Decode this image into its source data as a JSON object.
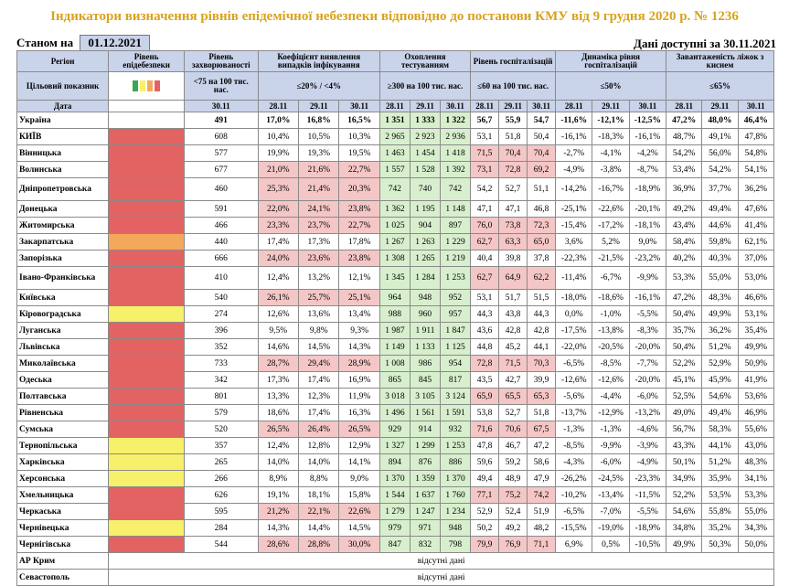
{
  "title": "Індикатори визначення рівнів епідемічної небезпеки відповідно до постанови КМУ від 9 грудня 2020 р. № 1236",
  "as_of_label": "Станом на",
  "as_of_date": "01.12.2021",
  "available_label": "Дані доступні за 30.11.2021",
  "headers": {
    "region": "Регіон",
    "target": "Цільовий показник",
    "date": "Дата",
    "level": "Рівень епідебезпеки",
    "morbidity": "Рівень захворюваності",
    "morbidity_target": "<75 на 100 тис. нас.",
    "detection": "Коефіцієнт виявлення випадків інфікування",
    "detection_target": "≤20% / <4%",
    "testing": "Охоплення тестуванням",
    "testing_target": "≥300 на 100 тис. нас.",
    "hosp": "Рівень госпіталізацій",
    "hosp_target": "≤60 на 100 тис. нас.",
    "dyn": "Динаміка рівня госпіталізацій",
    "dyn_target": "≤50%",
    "beds": "Завантаженість ліжок з киснем",
    "beds_target": "≤65%",
    "d1": "28.11",
    "d2": "29.11",
    "d3": "30.11",
    "legend_colors": [
      "#3aa655",
      "#f7f06a",
      "#f3a85b",
      "#e36363"
    ]
  },
  "rows": [
    {
      "name": "Україна",
      "level": "",
      "m": "491",
      "det": [
        "17,0%",
        "16,8%",
        "16,5%"
      ],
      "test": [
        "1 351",
        "1 333",
        "1 322"
      ],
      "hosp": [
        "56,7",
        "55,9",
        "54,7"
      ],
      "dyn": [
        "-11,6%",
        "-12,1%",
        "-12,5%"
      ],
      "beds": [
        "47,2%",
        "48,0%",
        "46,4%"
      ]
    },
    {
      "name": "КИЇВ",
      "level": "r",
      "m": "608",
      "det": [
        "10,4%",
        "10,5%",
        "10,3%"
      ],
      "test": [
        "2 965",
        "2 923",
        "2 936"
      ],
      "hosp": [
        "53,1",
        "51,8",
        "50,4"
      ],
      "dyn": [
        "-16,1%",
        "-18,3%",
        "-16,1%"
      ],
      "beds": [
        "48,7%",
        "49,1%",
        "47,8%"
      ]
    },
    {
      "name": "Вінницька",
      "level": "r",
      "m": "577",
      "det": [
        "19,9%",
        "19,3%",
        "19,5%"
      ],
      "test": [
        "1 463",
        "1 454",
        "1 418"
      ],
      "hosp": [
        "71,5",
        "70,4",
        "70,4"
      ],
      "dyn": [
        "-2,7%",
        "-4,1%",
        "-4,2%"
      ],
      "beds": [
        "54,2%",
        "56,0%",
        "54,8%"
      ]
    },
    {
      "name": "Волинська",
      "level": "r",
      "m": "677",
      "det": [
        "21,0%",
        "21,6%",
        "22,7%"
      ],
      "test": [
        "1 557",
        "1 528",
        "1 392"
      ],
      "hosp": [
        "73,1",
        "72,8",
        "69,2"
      ],
      "dyn": [
        "-4,9%",
        "-3,8%",
        "-8,7%"
      ],
      "beds": [
        "53,4%",
        "54,2%",
        "54,1%"
      ]
    },
    {
      "name": "Дніпропетровська",
      "level": "r",
      "m": "460",
      "det": [
        "25,3%",
        "21,4%",
        "20,3%"
      ],
      "test": [
        "742",
        "740",
        "742"
      ],
      "hosp": [
        "54,2",
        "52,7",
        "51,1"
      ],
      "dyn": [
        "-14,2%",
        "-16,7%",
        "-18,9%"
      ],
      "beds": [
        "36,9%",
        "37,7%",
        "36,2%"
      ]
    },
    {
      "name": "Донецька",
      "level": "r",
      "m": "591",
      "det": [
        "22,0%",
        "24,1%",
        "23,8%"
      ],
      "test": [
        "1 362",
        "1 195",
        "1 148"
      ],
      "hosp": [
        "47,1",
        "47,1",
        "46,8"
      ],
      "dyn": [
        "-25,1%",
        "-22,6%",
        "-20,1%"
      ],
      "beds": [
        "49,2%",
        "49,4%",
        "47,6%"
      ]
    },
    {
      "name": "Житомирська",
      "level": "r",
      "m": "466",
      "det": [
        "23,3%",
        "23,7%",
        "22,7%"
      ],
      "test": [
        "1 025",
        "904",
        "897"
      ],
      "hosp": [
        "76,0",
        "73,8",
        "72,3"
      ],
      "dyn": [
        "-15,4%",
        "-17,2%",
        "-18,1%"
      ],
      "beds": [
        "43,4%",
        "44,6%",
        "41,4%"
      ]
    },
    {
      "name": "Закарпатська",
      "level": "o",
      "m": "440",
      "det": [
        "17,4%",
        "17,3%",
        "17,8%"
      ],
      "test": [
        "1 267",
        "1 263",
        "1 229"
      ],
      "hosp": [
        "62,7",
        "63,3",
        "65,0"
      ],
      "dyn": [
        "3,6%",
        "5,2%",
        "9,0%"
      ],
      "beds": [
        "58,4%",
        "59,8%",
        "62,1%"
      ]
    },
    {
      "name": "Запорізька",
      "level": "r",
      "m": "666",
      "det": [
        "24,0%",
        "23,6%",
        "23,8%"
      ],
      "test": [
        "1 308",
        "1 265",
        "1 219"
      ],
      "hosp": [
        "40,4",
        "39,8",
        "37,8"
      ],
      "dyn": [
        "-22,3%",
        "-21,5%",
        "-23,2%"
      ],
      "beds": [
        "40,2%",
        "40,3%",
        "37,0%"
      ]
    },
    {
      "name": "Івано-Франківська",
      "level": "r",
      "m": "410",
      "det": [
        "12,4%",
        "13,2%",
        "12,1%"
      ],
      "test": [
        "1 345",
        "1 284",
        "1 253"
      ],
      "hosp": [
        "62,7",
        "64,9",
        "62,2"
      ],
      "dyn": [
        "-11,4%",
        "-6,7%",
        "-9,9%"
      ],
      "beds": [
        "53,3%",
        "55,0%",
        "53,0%"
      ]
    },
    {
      "name": "Київська",
      "level": "r",
      "m": "540",
      "det": [
        "26,1%",
        "25,7%",
        "25,1%"
      ],
      "test": [
        "964",
        "948",
        "952"
      ],
      "hosp": [
        "53,1",
        "51,7",
        "51,5"
      ],
      "dyn": [
        "-18,0%",
        "-18,6%",
        "-16,1%"
      ],
      "beds": [
        "47,2%",
        "48,3%",
        "46,6%"
      ]
    },
    {
      "name": "Кіровоградська",
      "level": "y",
      "m": "274",
      "det": [
        "12,6%",
        "13,6%",
        "13,4%"
      ],
      "test": [
        "988",
        "960",
        "957"
      ],
      "hosp": [
        "44,3",
        "43,8",
        "44,3"
      ],
      "dyn": [
        "0,0%",
        "-1,0%",
        "-5,5%"
      ],
      "beds": [
        "50,4%",
        "49,9%",
        "53,1%"
      ]
    },
    {
      "name": "Луганська",
      "level": "r",
      "m": "396",
      "det": [
        "9,5%",
        "9,8%",
        "9,3%"
      ],
      "test": [
        "1 987",
        "1 911",
        "1 847"
      ],
      "hosp": [
        "43,6",
        "42,8",
        "42,8"
      ],
      "dyn": [
        "-17,5%",
        "-13,8%",
        "-8,3%"
      ],
      "beds": [
        "35,7%",
        "36,2%",
        "35,4%"
      ]
    },
    {
      "name": "Львівська",
      "level": "r",
      "m": "352",
      "det": [
        "14,6%",
        "14,5%",
        "14,3%"
      ],
      "test": [
        "1 149",
        "1 133",
        "1 125"
      ],
      "hosp": [
        "44,8",
        "45,2",
        "44,1"
      ],
      "dyn": [
        "-22,0%",
        "-20,5%",
        "-20,0%"
      ],
      "beds": [
        "50,4%",
        "51,2%",
        "49,9%"
      ]
    },
    {
      "name": "Миколаївська",
      "level": "r",
      "m": "733",
      "det": [
        "28,7%",
        "29,4%",
        "28,9%"
      ],
      "test": [
        "1 008",
        "986",
        "954"
      ],
      "hosp": [
        "72,8",
        "71,5",
        "70,3"
      ],
      "dyn": [
        "-6,5%",
        "-8,5%",
        "-7,7%"
      ],
      "beds": [
        "52,2%",
        "52,9%",
        "50,9%"
      ]
    },
    {
      "name": "Одеська",
      "level": "r",
      "m": "342",
      "det": [
        "17,3%",
        "17,4%",
        "16,9%"
      ],
      "test": [
        "865",
        "845",
        "817"
      ],
      "hosp": [
        "43,5",
        "42,7",
        "39,9"
      ],
      "dyn": [
        "-12,6%",
        "-12,6%",
        "-20,0%"
      ],
      "beds": [
        "45,1%",
        "45,9%",
        "41,9%"
      ]
    },
    {
      "name": "Полтавська",
      "level": "r",
      "m": "801",
      "det": [
        "13,3%",
        "12,3%",
        "11,9%"
      ],
      "test": [
        "3 018",
        "3 105",
        "3 124"
      ],
      "hosp": [
        "65,9",
        "65,5",
        "65,3"
      ],
      "dyn": [
        "-5,6%",
        "-4,4%",
        "-6,0%"
      ],
      "beds": [
        "52,5%",
        "54,6%",
        "53,6%"
      ]
    },
    {
      "name": "Рівненська",
      "level": "r",
      "m": "579",
      "det": [
        "18,6%",
        "17,4%",
        "16,3%"
      ],
      "test": [
        "1 496",
        "1 561",
        "1 591"
      ],
      "hosp": [
        "53,8",
        "52,7",
        "51,8"
      ],
      "dyn": [
        "-13,7%",
        "-12,9%",
        "-13,2%"
      ],
      "beds": [
        "49,0%",
        "49,4%",
        "46,9%"
      ]
    },
    {
      "name": "Сумська",
      "level": "r",
      "m": "520",
      "det": [
        "26,5%",
        "26,4%",
        "26,5%"
      ],
      "test": [
        "929",
        "914",
        "932"
      ],
      "hosp": [
        "71,6",
        "70,6",
        "67,5"
      ],
      "dyn": [
        "-1,3%",
        "-1,3%",
        "-4,6%"
      ],
      "beds": [
        "56,7%",
        "58,3%",
        "55,6%"
      ]
    },
    {
      "name": "Тернопільська",
      "level": "y",
      "m": "357",
      "det": [
        "12,4%",
        "12,8%",
        "12,9%"
      ],
      "test": [
        "1 327",
        "1 299",
        "1 253"
      ],
      "hosp": [
        "47,8",
        "46,7",
        "47,2"
      ],
      "dyn": [
        "-8,5%",
        "-9,9%",
        "-3,9%"
      ],
      "beds": [
        "43,3%",
        "44,1%",
        "43,0%"
      ]
    },
    {
      "name": "Харківська",
      "level": "y",
      "m": "265",
      "det": [
        "14,0%",
        "14,0%",
        "14,1%"
      ],
      "test": [
        "894",
        "876",
        "886"
      ],
      "hosp": [
        "59,6",
        "59,2",
        "58,6"
      ],
      "dyn": [
        "-4,3%",
        "-6,0%",
        "-4,9%"
      ],
      "beds": [
        "50,1%",
        "51,2%",
        "48,3%"
      ]
    },
    {
      "name": "Херсонська",
      "level": "y",
      "m": "266",
      "det": [
        "8,9%",
        "8,8%",
        "9,0%"
      ],
      "test": [
        "1 370",
        "1 359",
        "1 370"
      ],
      "hosp": [
        "49,4",
        "48,9",
        "47,9"
      ],
      "dyn": [
        "-26,2%",
        "-24,5%",
        "-23,3%"
      ],
      "beds": [
        "34,9%",
        "35,9%",
        "34,1%"
      ]
    },
    {
      "name": "Хмельницька",
      "level": "r",
      "m": "626",
      "det": [
        "19,1%",
        "18,1%",
        "15,8%"
      ],
      "test": [
        "1 544",
        "1 637",
        "1 760"
      ],
      "hosp": [
        "77,1",
        "75,2",
        "74,2"
      ],
      "dyn": [
        "-10,2%",
        "-13,4%",
        "-11,5%"
      ],
      "beds": [
        "52,2%",
        "53,5%",
        "53,3%"
      ]
    },
    {
      "name": "Черкаська",
      "level": "r",
      "m": "595",
      "det": [
        "21,2%",
        "22,1%",
        "22,6%"
      ],
      "test": [
        "1 279",
        "1 247",
        "1 234"
      ],
      "hosp": [
        "52,9",
        "52,4",
        "51,9"
      ],
      "dyn": [
        "-6,5%",
        "-7,0%",
        "-5,5%"
      ],
      "beds": [
        "54,6%",
        "55,8%",
        "55,0%"
      ]
    },
    {
      "name": "Чернівецька",
      "level": "y",
      "m": "284",
      "det": [
        "14,3%",
        "14,4%",
        "14,5%"
      ],
      "test": [
        "979",
        "971",
        "948"
      ],
      "hosp": [
        "50,2",
        "49,2",
        "48,2"
      ],
      "dyn": [
        "-15,5%",
        "-19,0%",
        "-18,9%"
      ],
      "beds": [
        "34,8%",
        "35,2%",
        "34,3%"
      ]
    },
    {
      "name": "Чернігівська",
      "level": "r",
      "m": "544",
      "det": [
        "28,6%",
        "28,8%",
        "30,0%"
      ],
      "test": [
        "847",
        "832",
        "798"
      ],
      "hosp": [
        "79,9",
        "76,9",
        "71,1"
      ],
      "dyn": [
        "6,9%",
        "0,5%",
        "-10,5%"
      ],
      "beds": [
        "49,9%",
        "50,3%",
        "50,0%"
      ]
    }
  ],
  "missing": [
    {
      "name": "АР Крим",
      "text": "відсутні дані"
    },
    {
      "name": "Севастополь",
      "text": "відсутні дані"
    }
  ]
}
